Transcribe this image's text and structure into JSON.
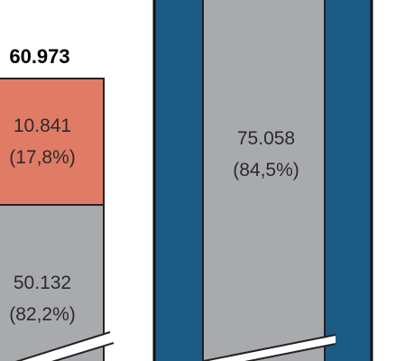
{
  "chart_data": {
    "type": "bar",
    "stacked": true,
    "y_axis_broken": true,
    "bars": [
      {
        "total": "60.973",
        "segments": [
          {
            "value": "10.841",
            "share": "(17,8%)",
            "color": "#e07b65"
          },
          {
            "value": "50.132",
            "share": "(82,2%)",
            "color": "#a8aaad"
          }
        ]
      },
      {
        "segments": [
          {
            "value": "75.058",
            "share": "(84,5%)",
            "color": "#a8aaad"
          }
        ],
        "frame_color": "#1c5b84"
      }
    ],
    "grid": false,
    "legend": "none"
  }
}
